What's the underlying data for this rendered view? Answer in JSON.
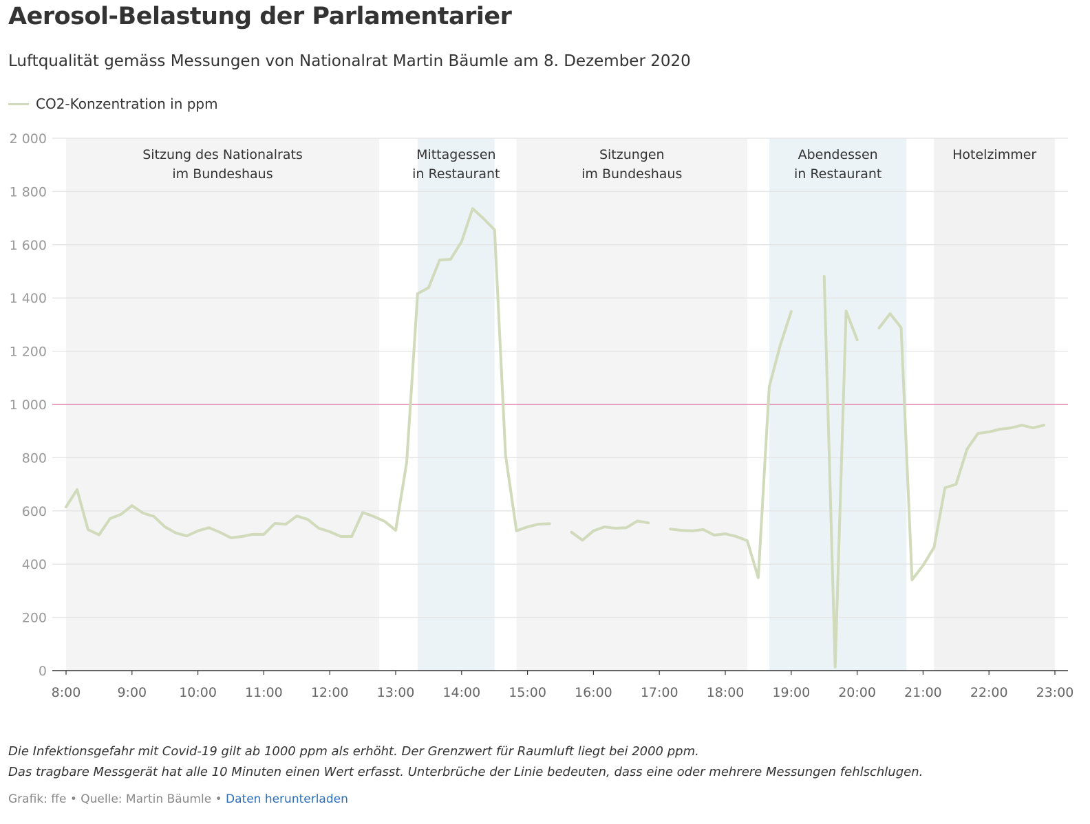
{
  "title": "Aerosol-Belastung der Parlamentarier",
  "subtitle": "Luftqualität gemäss Messungen von Nationalrat Martin Bäumle am 8. Dezember 2020",
  "notes": [
    "Die Infektionsgefahr mit Covid-19 gilt ab 1000 ppm als erhöht. Der Grenzwert für Raumluft liegt bei 2000 ppm.",
    "Das tragbare Messgerät hat alle 10 Minuten einen Wert erfasst. Unterbrüche der Linie bedeuten, dass eine oder mehrere Messungen fehlschlugen."
  ],
  "source": {
    "grafik": "Grafik: ffe",
    "sep": "•",
    "quelle": "Quelle: Martin Bäumle",
    "download_label": "Daten herunterladen"
  },
  "chart_data": {
    "type": "line",
    "title": "Aerosol-Belastung der Parlamentarier",
    "xlabel": "",
    "ylabel": "",
    "ylim": [
      0,
      2000
    ],
    "yticks": [
      0,
      200,
      400,
      600,
      800,
      1000,
      1200,
      1400,
      1600,
      1800,
      2000
    ],
    "ytick_labels": [
      "0",
      "200",
      "400",
      "600",
      "800",
      "1 000",
      "1 200",
      "1 400",
      "1 600",
      "1 800",
      "2 000"
    ],
    "xlim": [
      "8:00",
      "23:00"
    ],
    "xtick_labels": [
      "8:00",
      "9:00",
      "10:00",
      "11:00",
      "12:00",
      "13:00",
      "14:00",
      "15:00",
      "16:00",
      "17:00",
      "18:00",
      "19:00",
      "20:00",
      "21:00",
      "22:00",
      "23:00"
    ],
    "grid": true,
    "legend": "top-left",
    "threshold": {
      "value": 1000,
      "color": "#e887b0"
    },
    "colors": {
      "line": "#d1dabb",
      "band_gray": "#f4f4f4",
      "band_blue": "#ecf3f7",
      "grid": "#e6e6e6"
    },
    "bands": [
      {
        "start": "8:00",
        "end": "12:45",
        "kind": "gray",
        "label": [
          "Sitzung des Nationalrats",
          "im Bundeshaus"
        ]
      },
      {
        "start": "13:20",
        "end": "14:30",
        "kind": "blue",
        "label": [
          "Mittagessen",
          "in Restaurant"
        ]
      },
      {
        "start": "14:50",
        "end": "18:20",
        "kind": "gray",
        "label": [
          "Sitzungen",
          "im Bundeshaus"
        ]
      },
      {
        "start": "18:40",
        "end": "20:45",
        "kind": "blue",
        "label": [
          "Abendessen",
          "in Restaurant"
        ]
      },
      {
        "start": "21:10",
        "end": "23:00",
        "kind": "gray",
        "label": [
          "Hotelzimmer"
        ]
      }
    ],
    "series": [
      {
        "name": "CO2-Konzentration in ppm",
        "x_start": "8:00",
        "x_step_minutes": 10,
        "values": [
          615,
          680,
          530,
          510,
          571,
          587,
          620,
          592,
          579,
          540,
          517,
          506,
          525,
          537,
          520,
          499,
          504,
          512,
          512,
          553,
          550,
          581,
          568,
          535,
          522,
          504,
          504,
          594,
          579,
          561,
          527,
          783,
          1416,
          1439,
          1543,
          1545,
          1612,
          1736,
          1698,
          1656,
          809,
          525,
          540,
          550,
          552,
          null,
          520,
          490,
          525,
          540,
          535,
          537,
          562,
          555,
          null,
          532,
          527,
          525,
          530,
          509,
          514,
          504,
          488,
          349,
          1067,
          1222,
          1349,
          null,
          null,
          1481,
          13,
          1351,
          1243,
          null,
          1287,
          1341,
          1289,
          341,
          395,
          463,
          687,
          700,
          832,
          891,
          897,
          907,
          912,
          922,
          912,
          922
        ]
      }
    ]
  }
}
